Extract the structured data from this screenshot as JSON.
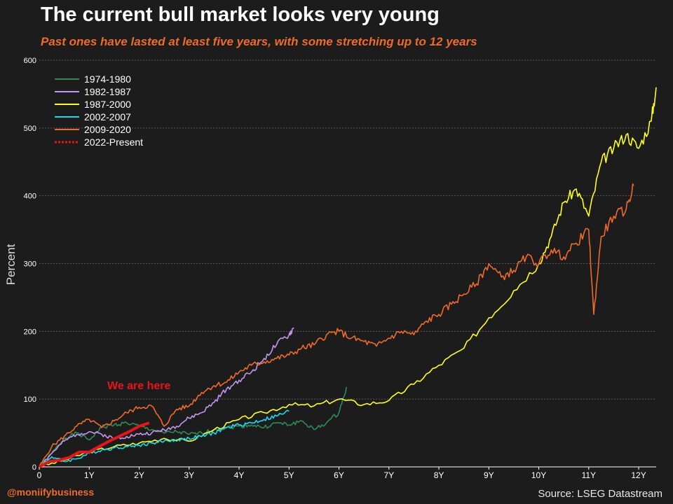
{
  "title": "The current bull market looks very young",
  "subtitle": "Past ones have lasted at least five years, with some stretching up to 12 years",
  "handle": "@moniifybusiness",
  "source": "Source: LSEG Datastream",
  "annotation": "We are here",
  "colors": {
    "background": "#1c1c1c",
    "grid": "#5a5a5a",
    "text": "#ffffff",
    "accent": "#f06a28",
    "annotation": "#e8141b"
  },
  "chart_data": {
    "type": "line",
    "title": "The current bull market looks very young",
    "subtitle": "Past ones have lasted at least five years, with some stretching up to 12 years",
    "xlabel": "",
    "ylabel": "Percent",
    "x_unit": "years",
    "xlim": [
      0,
      12.35
    ],
    "ylim": [
      0,
      600
    ],
    "x_ticks": [
      "0",
      "1Y",
      "2Y",
      "3Y",
      "4Y",
      "5Y",
      "6Y",
      "7Y",
      "8Y",
      "9Y",
      "10Y",
      "11Y",
      "12Y"
    ],
    "y_ticks": [
      0,
      100,
      200,
      300,
      400,
      500,
      600
    ],
    "grid": "horizontal dashed",
    "legend_position": "top-left",
    "series": [
      {
        "name": "1974-1980",
        "color": "#2e8b57",
        "style": "solid",
        "x": [
          0,
          0.25,
          0.5,
          0.75,
          1.0,
          1.25,
          1.5,
          1.75,
          2.0,
          2.25,
          2.5,
          2.75,
          3.0,
          3.25,
          3.5,
          3.75,
          4.0,
          4.25,
          4.5,
          4.75,
          5.0,
          5.25,
          5.5,
          5.75,
          6.0,
          6.15
        ],
        "y": [
          0,
          20,
          42,
          50,
          40,
          58,
          62,
          65,
          60,
          55,
          50,
          52,
          48,
          50,
          55,
          58,
          60,
          62,
          58,
          65,
          62,
          68,
          55,
          65,
          80,
          118
        ]
      },
      {
        "name": "1982-1987",
        "color": "#c395f0",
        "style": "solid",
        "x": [
          0,
          0.25,
          0.5,
          0.75,
          1.0,
          1.25,
          1.5,
          1.75,
          2.0,
          2.25,
          2.5,
          2.75,
          3.0,
          3.25,
          3.5,
          3.75,
          4.0,
          4.25,
          4.5,
          4.75,
          5.0,
          5.1
        ],
        "y": [
          0,
          20,
          38,
          48,
          52,
          48,
          42,
          45,
          48,
          50,
          55,
          60,
          72,
          80,
          95,
          115,
          128,
          140,
          160,
          180,
          195,
          205
        ]
      },
      {
        "name": "1987-2000",
        "color": "#ffff1a",
        "style": "solid",
        "x": [
          0,
          0.5,
          1.0,
          1.5,
          2.0,
          2.5,
          3.0,
          3.5,
          4.0,
          4.5,
          5.0,
          5.5,
          6.0,
          6.5,
          7.0,
          7.5,
          8.0,
          8.5,
          9.0,
          9.5,
          10.0,
          10.25,
          10.5,
          10.75,
          11.0,
          11.25,
          11.5,
          11.75,
          12.0,
          12.25,
          12.35
        ],
        "y": [
          0,
          10,
          22,
          30,
          35,
          42,
          38,
          55,
          70,
          80,
          92,
          90,
          100,
          92,
          98,
          122,
          150,
          175,
          220,
          260,
          300,
          340,
          390,
          410,
          370,
          450,
          470,
          490,
          470,
          510,
          560
        ]
      },
      {
        "name": "2002-2007",
        "color": "#19d9f0",
        "style": "solid",
        "x": [
          0,
          0.25,
          0.5,
          0.75,
          1.0,
          1.25,
          1.5,
          1.75,
          2.0,
          2.25,
          2.5,
          2.75,
          3.0,
          3.25,
          3.5,
          3.75,
          4.0,
          4.25,
          4.5,
          4.75,
          5.0
        ],
        "y": [
          0,
          15,
          8,
          12,
          20,
          25,
          28,
          30,
          32,
          35,
          38,
          40,
          42,
          45,
          50,
          58,
          62,
          65,
          70,
          75,
          82
        ]
      },
      {
        "name": "2009-2020",
        "color": "#f06a28",
        "style": "solid",
        "x": [
          0,
          0.25,
          0.5,
          0.75,
          1.0,
          1.25,
          1.5,
          1.75,
          2.0,
          2.25,
          2.5,
          2.75,
          3.0,
          3.25,
          3.5,
          3.75,
          4.0,
          4.25,
          4.5,
          4.75,
          5.0,
          5.25,
          5.5,
          5.75,
          6.0,
          6.25,
          6.5,
          6.75,
          7.0,
          7.25,
          7.5,
          7.75,
          8.0,
          8.25,
          8.5,
          8.75,
          9.0,
          9.25,
          9.5,
          9.75,
          10.0,
          10.25,
          10.5,
          10.75,
          11.0,
          11.1,
          11.25,
          11.5,
          11.75,
          11.9
        ],
        "y": [
          0,
          30,
          45,
          60,
          70,
          58,
          68,
          80,
          88,
          90,
          60,
          85,
          90,
          110,
          120,
          125,
          140,
          150,
          155,
          160,
          165,
          175,
          180,
          195,
          200,
          190,
          185,
          178,
          190,
          200,
          195,
          215,
          225,
          240,
          255,
          270,
          300,
          280,
          290,
          310,
          300,
          320,
          310,
          330,
          350,
          225,
          340,
          370,
          380,
          415
        ]
      },
      {
        "name": "2022-Present",
        "color": "#e8141b",
        "style": "dotted",
        "x": [
          0,
          0.2,
          0.4,
          0.6,
          0.8,
          1.0,
          1.2,
          1.4,
          1.6,
          1.8,
          2.0,
          2.2
        ],
        "y": [
          0,
          8,
          10,
          14,
          22,
          22,
          30,
          38,
          45,
          52,
          60,
          65
        ]
      }
    ]
  }
}
